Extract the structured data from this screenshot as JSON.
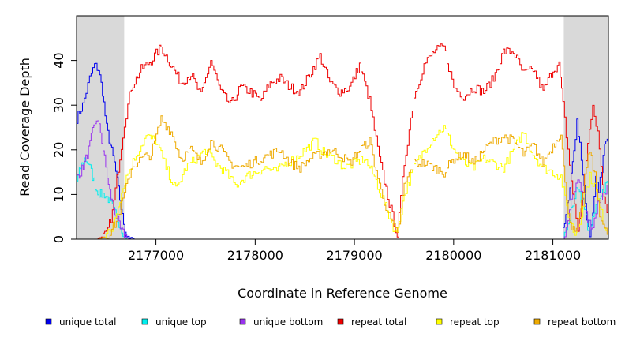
{
  "chart_data": {
    "type": "line",
    "title": "",
    "xlabel": "Coordinate in Reference Genome",
    "ylabel": "Read Coverage Depth",
    "xlim": [
      2176200,
      2181560
    ],
    "ylim": [
      0,
      50
    ],
    "x_ticks": [
      2177000,
      2178000,
      2179000,
      2180000,
      2181000
    ],
    "x_tick_labels": [
      "2177000",
      "2178000",
      "2179000",
      "2180000",
      "2181000"
    ],
    "y_ticks": [
      0,
      10,
      20,
      30,
      40
    ],
    "y_tick_labels": [
      "0",
      "10",
      "20",
      "30",
      "40"
    ],
    "grid": false,
    "shaded_regions": [
      {
        "x0": 2176200,
        "x1": 2176680
      },
      {
        "x0": 2181110,
        "x1": 2181560
      }
    ],
    "shade_color": "#d9d9d9",
    "legend_position": "bottom",
    "series": [
      {
        "name": "unique total",
        "color": "#0000ee",
        "x": [
          2176200,
          2176260,
          2176330,
          2176380,
          2176420,
          2176460,
          2176500,
          2176540,
          2176580,
          2176620,
          2176660,
          2176700,
          2176780,
          2177500,
          2178500,
          2179500,
          2180500,
          2181000,
          2181090,
          2181130,
          2181170,
          2181210,
          2181240,
          2181270,
          2181300,
          2181340,
          2181370,
          2181400,
          2181430,
          2181460,
          2181490,
          2181520,
          2181560
        ],
        "values": [
          27,
          30,
          36,
          39,
          38,
          33,
          25,
          21,
          17,
          11,
          5,
          1,
          0,
          0,
          0,
          0,
          0,
          0,
          0,
          5,
          12,
          20,
          26,
          22,
          14,
          5,
          1,
          6,
          14,
          11,
          15,
          21,
          23
        ]
      },
      {
        "name": "unique top",
        "color": "#00eeee",
        "x": [
          2176200,
          2176240,
          2176280,
          2176320,
          2176360,
          2176400,
          2176440,
          2176480,
          2176520,
          2176560,
          2176600,
          2176640,
          2176680,
          2176720,
          2177500,
          2178500,
          2179500,
          2180500,
          2181100,
          2181150,
          2181200,
          2181250,
          2181300,
          2181350,
          2181400,
          2181450,
          2181500,
          2181560
        ],
        "values": [
          13,
          16,
          18,
          17,
          14,
          11,
          10,
          10,
          9,
          7,
          5,
          3,
          1,
          0,
          0,
          0,
          0,
          0,
          0,
          3,
          8,
          12,
          8,
          3,
          4,
          9,
          11,
          13
        ]
      },
      {
        "name": "unique bottom",
        "color": "#9933ee",
        "x": [
          2176200,
          2176240,
          2176280,
          2176320,
          2176360,
          2176400,
          2176440,
          2176480,
          2176520,
          2176560,
          2176600,
          2176640,
          2176680,
          2176720,
          2177500,
          2178500,
          2179500,
          2180500,
          2181100,
          2181150,
          2181200,
          2181250,
          2181300,
          2181350,
          2181400,
          2181450,
          2181500,
          2181560
        ],
        "values": [
          14,
          15,
          17,
          20,
          24,
          27,
          24,
          18,
          12,
          8,
          5,
          2,
          1,
          0,
          0,
          0,
          0,
          0,
          0,
          4,
          10,
          14,
          9,
          4,
          3,
          8,
          10,
          12
        ]
      },
      {
        "name": "repeat total",
        "color": "#ee0000",
        "x": [
          2176200,
          2176400,
          2176500,
          2176560,
          2176620,
          2176680,
          2176750,
          2176850,
          2176950,
          2177050,
          2177150,
          2177250,
          2177350,
          2177450,
          2177550,
          2177650,
          2177750,
          2177850,
          2177950,
          2178050,
          2178150,
          2178250,
          2178350,
          2178450,
          2178550,
          2178650,
          2178750,
          2178850,
          2178950,
          2179050,
          2179150,
          2179250,
          2179350,
          2179430,
          2179500,
          2179600,
          2179700,
          2179800,
          2179900,
          2180000,
          2180100,
          2180200,
          2180300,
          2180400,
          2180500,
          2180600,
          2180700,
          2180800,
          2180900,
          2181000,
          2181060,
          2181100,
          2181150,
          2181200,
          2181250,
          2181300,
          2181350,
          2181400,
          2181450,
          2181500,
          2181560
        ],
        "values": [
          0,
          0,
          1,
          6,
          16,
          26,
          34,
          38,
          40,
          43,
          39,
          35,
          37,
          32,
          40,
          33,
          30,
          34,
          33,
          31,
          35,
          36,
          34,
          33,
          37,
          41,
          35,
          33,
          34,
          39,
          31,
          18,
          8,
          1,
          17,
          32,
          39,
          42,
          43,
          34,
          32,
          34,
          33,
          36,
          42,
          42,
          37,
          38,
          33,
          38,
          39,
          30,
          20,
          10,
          2,
          10,
          22,
          29,
          24,
          12,
          5
        ]
      },
      {
        "name": "repeat top",
        "color": "#ffff00",
        "x": [
          2176200,
          2176450,
          2176550,
          2176620,
          2176700,
          2176800,
          2176900,
          2177000,
          2177100,
          2177200,
          2177300,
          2177400,
          2177500,
          2177600,
          2177700,
          2177800,
          2177900,
          2178000,
          2178100,
          2178200,
          2178300,
          2178400,
          2178500,
          2178600,
          2178700,
          2178800,
          2178900,
          2179000,
          2179100,
          2179200,
          2179300,
          2179420,
          2179500,
          2179600,
          2179700,
          2179800,
          2179900,
          2180000,
          2180100,
          2180200,
          2180300,
          2180400,
          2180500,
          2180600,
          2180700,
          2180800,
          2180900,
          2181000,
          2181080,
          2181120,
          2181170,
          2181220,
          2181270,
          2181320,
          2181370,
          2181420,
          2181470,
          2181520,
          2181560
        ],
        "values": [
          0,
          0,
          2,
          8,
          14,
          19,
          23,
          22,
          16,
          11,
          16,
          18,
          20,
          17,
          15,
          12,
          14,
          15,
          16,
          15,
          17,
          18,
          20,
          22,
          19,
          18,
          16,
          17,
          18,
          14,
          8,
          1,
          10,
          16,
          20,
          23,
          25,
          20,
          17,
          16,
          18,
          17,
          16,
          20,
          24,
          19,
          16,
          15,
          14,
          9,
          4,
          1,
          4,
          10,
          14,
          12,
          7,
          3,
          2
        ]
      },
      {
        "name": "repeat bottom",
        "color": "#eeaa00",
        "x": [
          2176200,
          2176420,
          2176520,
          2176600,
          2176680,
          2176750,
          2176850,
          2176950,
          2177050,
          2177150,
          2177250,
          2177350,
          2177450,
          2177550,
          2177650,
          2177750,
          2177850,
          2177950,
          2178050,
          2178150,
          2178250,
          2178350,
          2178450,
          2178550,
          2178650,
          2178750,
          2178850,
          2178950,
          2179050,
          2179150,
          2179250,
          2179350,
          2179430,
          2179500,
          2179600,
          2179700,
          2179800,
          2179900,
          2180000,
          2180100,
          2180200,
          2180300,
          2180400,
          2180500,
          2180600,
          2180700,
          2180800,
          2180900,
          2181000,
          2181080,
          2181120,
          2181170,
          2181220,
          2181270,
          2181320,
          2181370,
          2181420,
          2181470,
          2181520,
          2181560
        ],
        "values": [
          0,
          0,
          1,
          4,
          10,
          16,
          18,
          19,
          27,
          24,
          18,
          20,
          17,
          22,
          20,
          17,
          16,
          17,
          18,
          19,
          20,
          17,
          16,
          18,
          19,
          20,
          19,
          17,
          20,
          22,
          12,
          5,
          1,
          12,
          17,
          17,
          16,
          15,
          18,
          19,
          17,
          20,
          22,
          23,
          22,
          19,
          21,
          17,
          21,
          24,
          12,
          4,
          1,
          5,
          14,
          20,
          14,
          6,
          2,
          1
        ]
      }
    ]
  }
}
